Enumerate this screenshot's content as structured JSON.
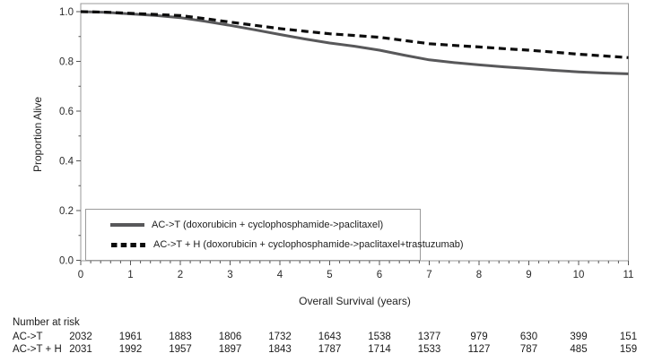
{
  "figure": {
    "background": "#ffffff",
    "text_color": "#1a1a1a",
    "frame_color": "#9a9a9a"
  },
  "chart_data": {
    "type": "line",
    "subtype": "kaplan-meier-survival",
    "title": "",
    "xlabel": "Overall Survival (years)",
    "ylabel": "Proportion Alive",
    "xlim": [
      0,
      11
    ],
    "ylim": [
      0,
      1.0
    ],
    "x_ticks": [
      0,
      1,
      2,
      3,
      4,
      5,
      6,
      7,
      8,
      9,
      10,
      11
    ],
    "y_ticks": [
      "0.0",
      "0.2",
      "0.4",
      "0.6",
      "0.8",
      "1.0"
    ],
    "x_minor_tick_step": 0.2,
    "y_minor_tick_step": 0.1,
    "grid": false,
    "legend_position": "inside-bottom-left",
    "series": [
      {
        "name": "AC->T (doxorubicin + cyclophosphamide->paclitaxel)",
        "short_name": "AC->T",
        "line_style": "solid",
        "dash": "",
        "color": "#58585a",
        "width": 3,
        "x": [
          0,
          0.5,
          1,
          1.5,
          2,
          2.5,
          3,
          3.5,
          4,
          4.5,
          5,
          5.5,
          6,
          6.5,
          7,
          7.5,
          8,
          8.5,
          9,
          9.5,
          10,
          10.5,
          11
        ],
        "y": [
          1.0,
          0.997,
          0.991,
          0.985,
          0.976,
          0.961,
          0.945,
          0.927,
          0.908,
          0.89,
          0.874,
          0.861,
          0.845,
          0.825,
          0.806,
          0.795,
          0.786,
          0.778,
          0.771,
          0.764,
          0.758,
          0.753,
          0.75
        ]
      },
      {
        "name": "AC->T + H (doxorubicin + cyclophosphamide->paclitaxel+trastuzumab)",
        "short_name": "AC->T + H",
        "line_style": "dashed",
        "dash": "8 5",
        "color": "#0d0d0d",
        "width": 3.2,
        "x": [
          0,
          0.5,
          1,
          1.5,
          2,
          2.5,
          3,
          3.5,
          4,
          4.5,
          5,
          5.5,
          6,
          6.5,
          7,
          7.5,
          8,
          8.5,
          9,
          9.5,
          10,
          10.5,
          11
        ],
        "y": [
          1.0,
          0.998,
          0.993,
          0.989,
          0.984,
          0.972,
          0.958,
          0.945,
          0.932,
          0.921,
          0.911,
          0.904,
          0.897,
          0.884,
          0.871,
          0.864,
          0.858,
          0.851,
          0.845,
          0.837,
          0.829,
          0.822,
          0.815
        ]
      }
    ]
  },
  "risk_table": {
    "title": "Number at risk",
    "time_points": [
      0,
      1,
      2,
      3,
      4,
      5,
      6,
      7,
      8,
      9,
      10,
      11
    ],
    "rows": [
      {
        "label": "AC->T",
        "values": [
          "2032",
          "1961",
          "1883",
          "1806",
          "1732",
          "1643",
          "1538",
          "1377",
          "979",
          "630",
          "399",
          "151"
        ]
      },
      {
        "label": "AC->T + H",
        "values": [
          "2031",
          "1992",
          "1957",
          "1897",
          "1843",
          "1787",
          "1714",
          "1533",
          "1127",
          "787",
          "485",
          "159"
        ]
      }
    ]
  }
}
